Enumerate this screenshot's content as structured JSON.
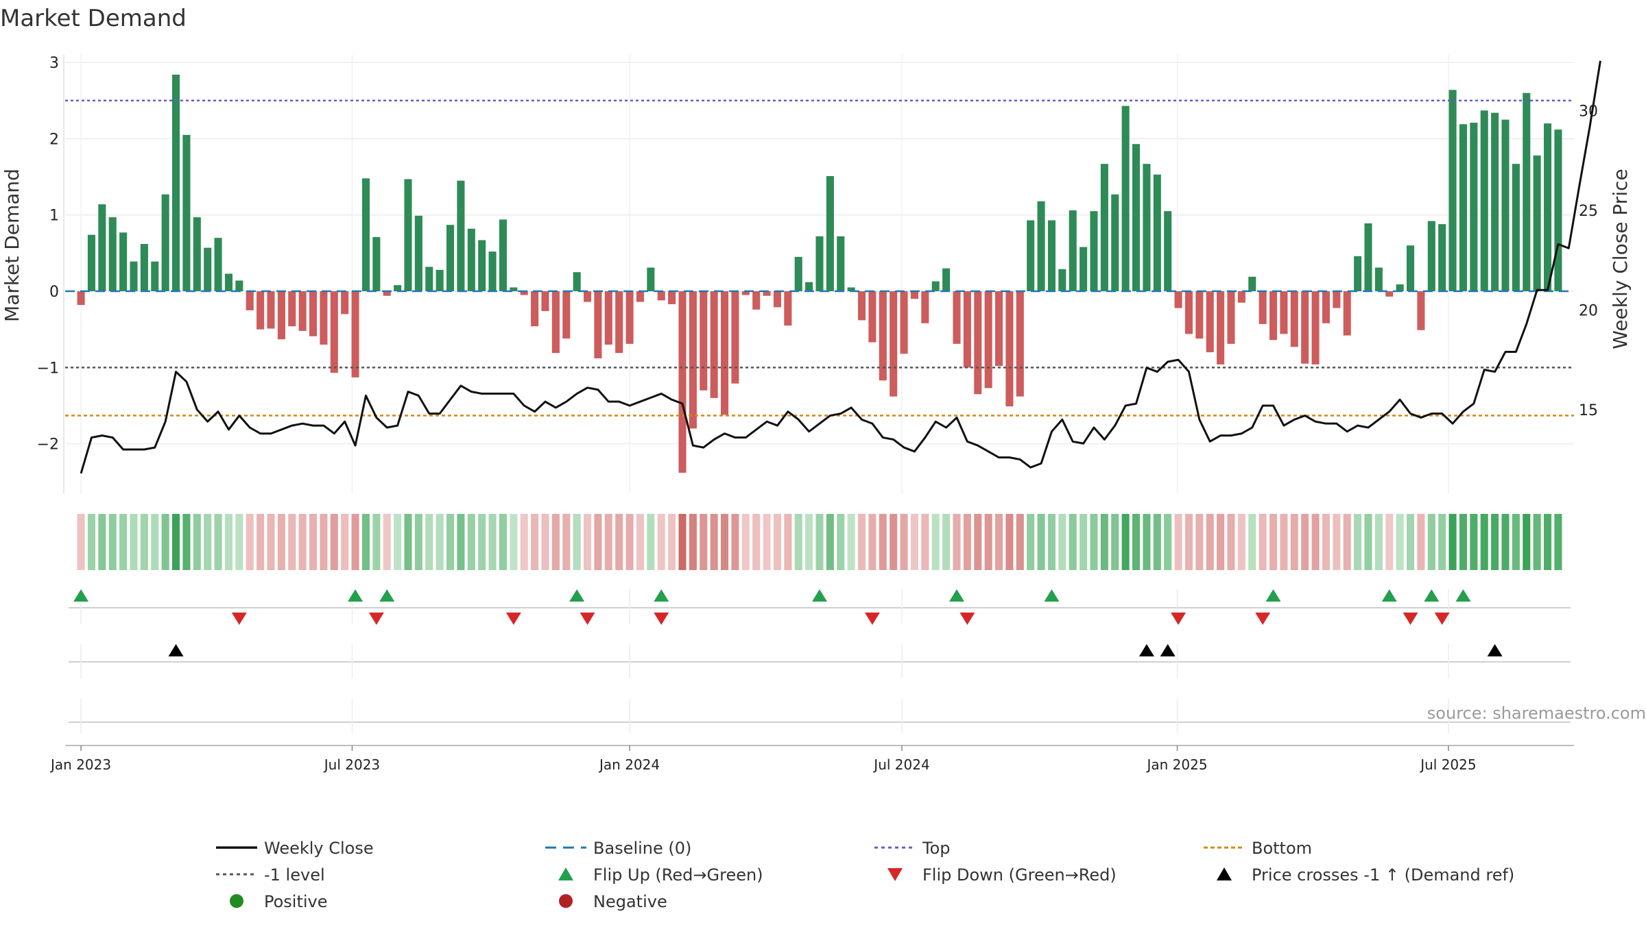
{
  "chart_data": {
    "type": "bar",
    "title": "Market Demand",
    "ylabel": "Market Demand",
    "y2label": "Weekly Close Price",
    "ylim": [
      -2.65,
      3.1
    ],
    "y2lim": [
      10.8,
      32.8
    ],
    "yticks": [
      -2,
      -1,
      0,
      1,
      2,
      3
    ],
    "y2ticks": [
      15,
      20,
      25,
      30
    ],
    "x_range_weeks": [
      -1.5,
      141.5
    ],
    "x_ticks": [
      {
        "label": "Jan 2023",
        "week": 0
      },
      {
        "label": "Jul 2023",
        "week": 25.7
      },
      {
        "label": "Jan 2024",
        "week": 52
      },
      {
        "label": "Jul 2024",
        "week": 77.8
      },
      {
        "label": "Jan 2025",
        "week": 103.9
      },
      {
        "label": "Jul 2025",
        "week": 129.6
      }
    ],
    "reference_lines": {
      "baseline": 0,
      "top": 2.5,
      "minus_one": -1,
      "bottom": -1.63
    },
    "demand": [
      -0.18,
      0.74,
      1.14,
      0.97,
      0.77,
      0.39,
      0.62,
      0.39,
      1.27,
      2.84,
      2.05,
      0.97,
      0.57,
      0.7,
      0.23,
      0.14,
      -0.25,
      -0.5,
      -0.49,
      -0.63,
      -0.46,
      -0.52,
      -0.59,
      -0.7,
      -1.07,
      -0.3,
      -1.13,
      1.48,
      0.71,
      -0.06,
      0.08,
      1.47,
      0.99,
      0.32,
      0.28,
      0.87,
      1.45,
      0.82,
      0.67,
      0.52,
      0.94,
      0.05,
      -0.05,
      -0.46,
      -0.26,
      -0.81,
      -0.62,
      0.25,
      -0.14,
      -0.88,
      -0.7,
      -0.81,
      -0.69,
      -0.14,
      0.31,
      -0.12,
      -0.17,
      -2.38,
      -1.8,
      -1.3,
      -1.4,
      -1.62,
      -1.21,
      -0.05,
      -0.24,
      -0.06,
      -0.21,
      -0.45,
      0.45,
      0.12,
      0.72,
      1.51,
      0.72,
      0.05,
      -0.38,
      -0.67,
      -1.17,
      -1.38,
      -0.82,
      -0.1,
      -0.42,
      0.13,
      0.3,
      -0.69,
      -1.0,
      -1.35,
      -1.27,
      -0.98,
      -1.51,
      -1.38,
      0.93,
      1.18,
      0.93,
      0.29,
      1.06,
      0.58,
      1.05,
      1.67,
      1.27,
      2.43,
      1.93,
      1.67,
      1.53,
      1.05,
      -0.22,
      -0.56,
      -0.62,
      -0.8,
      -0.96,
      -0.69,
      -0.15,
      0.19,
      -0.43,
      -0.64,
      -0.56,
      -0.73,
      -0.95,
      -0.96,
      -0.42,
      -0.22,
      -0.58,
      0.46,
      0.89,
      0.31,
      -0.07,
      0.09,
      0.6,
      -0.51,
      0.92,
      0.88,
      2.64,
      2.19,
      2.21,
      2.37,
      2.34,
      2.25,
      1.67,
      2.6,
      1.78,
      2.2,
      2.12
    ],
    "weekly_close": [
      11.8,
      13.6,
      13.7,
      13.6,
      13.0,
      13.0,
      13.0,
      13.1,
      14.4,
      16.9,
      16.4,
      15.0,
      14.4,
      14.9,
      14.0,
      14.7,
      14.1,
      13.8,
      13.8,
      14.0,
      14.2,
      14.3,
      14.2,
      14.2,
      13.8,
      14.4,
      13.2,
      15.7,
      14.6,
      14.1,
      14.2,
      15.9,
      15.7,
      14.8,
      14.8,
      15.5,
      16.2,
      15.9,
      15.8,
      15.8,
      15.8,
      15.8,
      15.2,
      14.9,
      15.4,
      15.1,
      15.4,
      15.8,
      16.1,
      16.0,
      15.4,
      15.4,
      15.2,
      15.4,
      15.6,
      15.8,
      15.5,
      15.3,
      13.2,
      13.1,
      13.5,
      13.8,
      13.6,
      13.6,
      14.0,
      14.4,
      14.2,
      14.9,
      14.5,
      13.9,
      14.3,
      14.7,
      14.8,
      15.1,
      14.5,
      14.3,
      13.6,
      13.5,
      13.1,
      12.9,
      13.6,
      14.4,
      14.1,
      14.6,
      13.4,
      13.2,
      12.9,
      12.6,
      12.6,
      12.5,
      12.1,
      12.3,
      13.9,
      14.5,
      13.4,
      13.3,
      14.1,
      13.5,
      14.2,
      15.2,
      15.3,
      17.1,
      16.9,
      17.4,
      17.5,
      16.9,
      14.5,
      13.4,
      13.7,
      13.7,
      13.8,
      14.1,
      15.2,
      15.2,
      14.2,
      14.5,
      14.7,
      14.4,
      14.3,
      14.3,
      13.9,
      14.2,
      14.1,
      14.5,
      14.9,
      15.5,
      14.8,
      14.6,
      14.8,
      14.8,
      14.3,
      14.9,
      15.3,
      17.0,
      16.9,
      17.9,
      17.9,
      19.3,
      21.0,
      21.0,
      23.3,
      23.1,
      26.2,
      29.2,
      32.5
    ],
    "flip_up_weeks": [
      0,
      26,
      29,
      47,
      55,
      70,
      83,
      92,
      113,
      124,
      128,
      131
    ],
    "flip_down_weeks": [
      15,
      28,
      41,
      48,
      55,
      75,
      84,
      104,
      112,
      126,
      129
    ],
    "price_cross_weeks": [
      9,
      101,
      103,
      134
    ],
    "legend": [
      "Weekly Close",
      "Baseline (0)",
      "Top",
      "Bottom",
      "-1 level",
      "Flip Up (Red→Green)",
      "Flip Down (Green→Red)",
      "Price crosses -1 ↑ (Demand ref)",
      "Positive",
      "Negative"
    ],
    "source": "source: sharemaestro.com",
    "colors": {
      "positive_bar": "#2e8b57",
      "negative_bar": "#cd5c5c",
      "close_line": "#111111",
      "baseline": "#1f77b4",
      "top": "#6a5acd",
      "minus_one": "#555555",
      "bottom": "#d4890e",
      "flip_up": "#22a04b",
      "flip_down": "#d62728",
      "cross": "#000000",
      "positive_dot": "#228b22",
      "negative_dot": "#b22222"
    }
  }
}
